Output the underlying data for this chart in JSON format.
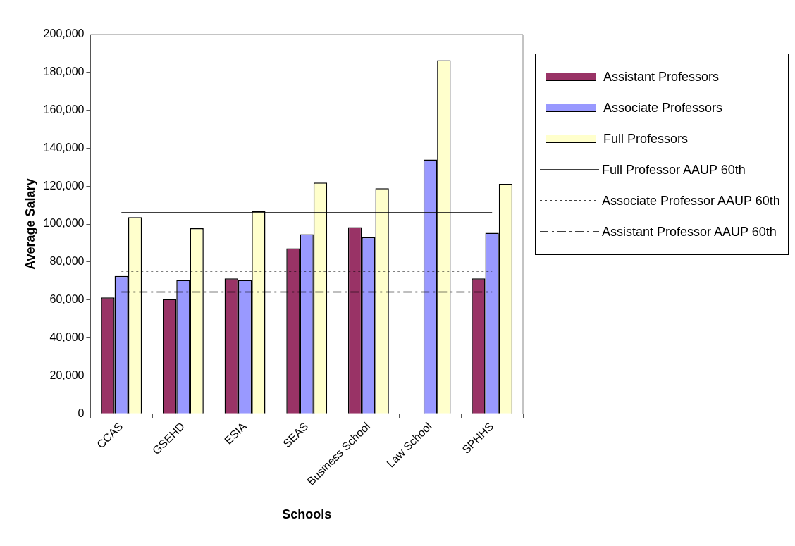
{
  "chart_data": {
    "type": "bar",
    "xlabel": "Schools",
    "ylabel": "Average Salary",
    "categories": [
      "CCAS",
      "GSEHD",
      "ESIA",
      "SEAS",
      "Business School",
      "Law School",
      "SPHHS"
    ],
    "series": [
      {
        "name": "Assistant Professors",
        "color": "#993366",
        "values": [
          61300,
          60500,
          71300,
          87200,
          98400,
          null,
          71300
        ]
      },
      {
        "name": "Associate Professors",
        "color": "#9999ff",
        "values": [
          72600,
          70500,
          70500,
          94600,
          93100,
          134000,
          95400
        ]
      },
      {
        "name": "Full Professors",
        "color": "#ffffcc",
        "values": [
          103700,
          97800,
          106800,
          121900,
          118900,
          186400,
          121200
        ]
      },
      {
        "name": "Full Professor AAUP 60th",
        "type": "line",
        "color": "#000000",
        "line_style": "solid",
        "marker": "none",
        "values": [
          106000,
          106000,
          106000,
          106000,
          106000,
          106000,
          106000
        ]
      },
      {
        "name": "Associate Professor AAUP 60th",
        "type": "line",
        "color": "#000000",
        "line_style": "dotted",
        "marker": "none",
        "values": [
          75200,
          75200,
          75200,
          75200,
          75200,
          75200,
          75200
        ]
      },
      {
        "name": "Assistant Professor AAUP 60th",
        "type": "line",
        "color": "#000000",
        "line_style": "dashdot",
        "marker": "none",
        "values": [
          64200,
          64200,
          64200,
          64200,
          64200,
          64200,
          64200
        ]
      }
    ],
    "ylim": [
      0,
      200000
    ],
    "yticks": [
      0,
      {
        "value": 20000,
        "label": "20,000"
      },
      {
        "value": 40000,
        "label": "40,000"
      },
      {
        "value": 60000,
        "label": "60,000"
      },
      {
        "value": 80000,
        "label": "80,000"
      },
      {
        "value": 100000,
        "label": "100,000"
      },
      {
        "value": 120000,
        "label": "120,000"
      },
      {
        "value": 140000,
        "label": "140,000"
      },
      {
        "value": 160000,
        "label": "160,000"
      },
      {
        "value": 180000,
        "label": "180,000"
      },
      {
        "value": 200000,
        "label": "200,000"
      }
    ],
    "grid": false,
    "legend": "right"
  }
}
